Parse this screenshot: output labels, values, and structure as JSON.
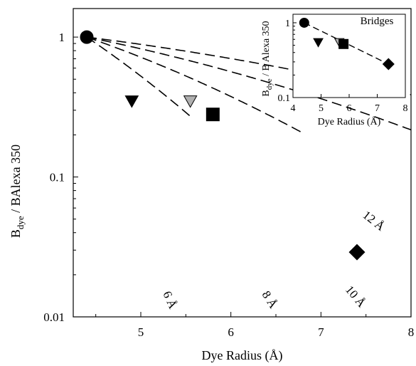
{
  "chart_data": [
    {
      "type": "line",
      "xlabel": "Dye Radius (Å)",
      "ylabel_main": "B",
      "ylabel_sub": "dye",
      "ylabel_rest": " / BAlexa 350",
      "x_scale": "linear",
      "y_scale": "log",
      "xlim": [
        4.25,
        8.0
      ],
      "ylim": [
        0.01,
        1.6
      ],
      "x_ticks": [
        5,
        6,
        7,
        8
      ],
      "x_tick_labels": [
        "5",
        "6",
        "7",
        "8"
      ],
      "y_ticks": [
        0.01,
        0.1,
        1
      ],
      "y_tick_labels": [
        "0.01",
        "0.1",
        "1"
      ],
      "grid": false,
      "curves": [
        {
          "label": "6 Å",
          "reference_length": 6,
          "style": "dashed"
        },
        {
          "label": "8 Å",
          "reference_length": 8,
          "style": "dashed"
        },
        {
          "label": "10 Å",
          "reference_length": 10,
          "style": "dashed"
        },
        {
          "label": "12 Å",
          "reference_length": 12,
          "style": "dashed"
        }
      ],
      "points": [
        {
          "x": 4.4,
          "y": 1.0,
          "marker": "circle",
          "color": "#000000"
        },
        {
          "x": 4.9,
          "y": 0.35,
          "marker": "triangle-down",
          "color": "#000000"
        },
        {
          "x": 5.55,
          "y": 0.35,
          "marker": "triangle-down",
          "color": "#b0b0b0"
        },
        {
          "x": 5.8,
          "y": 0.28,
          "marker": "square",
          "color": "#000000"
        },
        {
          "x": 7.4,
          "y": 0.029,
          "marker": "diamond",
          "color": "#000000"
        }
      ]
    },
    {
      "type": "scatter",
      "title": "Bridges",
      "xlabel": "Dye Radius (Å)",
      "ylabel_main": "B",
      "ylabel_sub": "dye",
      "ylabel_rest": " / B Alexa 350",
      "x_scale": "linear",
      "y_scale": "log",
      "xlim": [
        4,
        8
      ],
      "ylim": [
        0.1,
        1.3
      ],
      "x_ticks": [
        4,
        5,
        6,
        7,
        8
      ],
      "x_tick_labels": [
        "4",
        "5",
        "6",
        "7",
        "8"
      ],
      "y_ticks": [
        0.1,
        1
      ],
      "y_tick_labels": [
        "0.1",
        "1"
      ],
      "fit_line": {
        "style": "dashed",
        "from": [
          4.4,
          1.0
        ],
        "to": [
          7.4,
          0.28
        ]
      },
      "points": [
        {
          "x": 4.4,
          "y": 1.0,
          "marker": "circle",
          "color": "#000000"
        },
        {
          "x": 4.9,
          "y": 0.55,
          "marker": "triangle-down",
          "color": "#000000"
        },
        {
          "x": 5.65,
          "y": 0.55,
          "marker": "triangle-down",
          "color": "#b0b0b0"
        },
        {
          "x": 5.8,
          "y": 0.52,
          "marker": "square",
          "color": "#000000"
        },
        {
          "x": 7.4,
          "y": 0.28,
          "marker": "diamond",
          "color": "#000000"
        }
      ]
    }
  ]
}
